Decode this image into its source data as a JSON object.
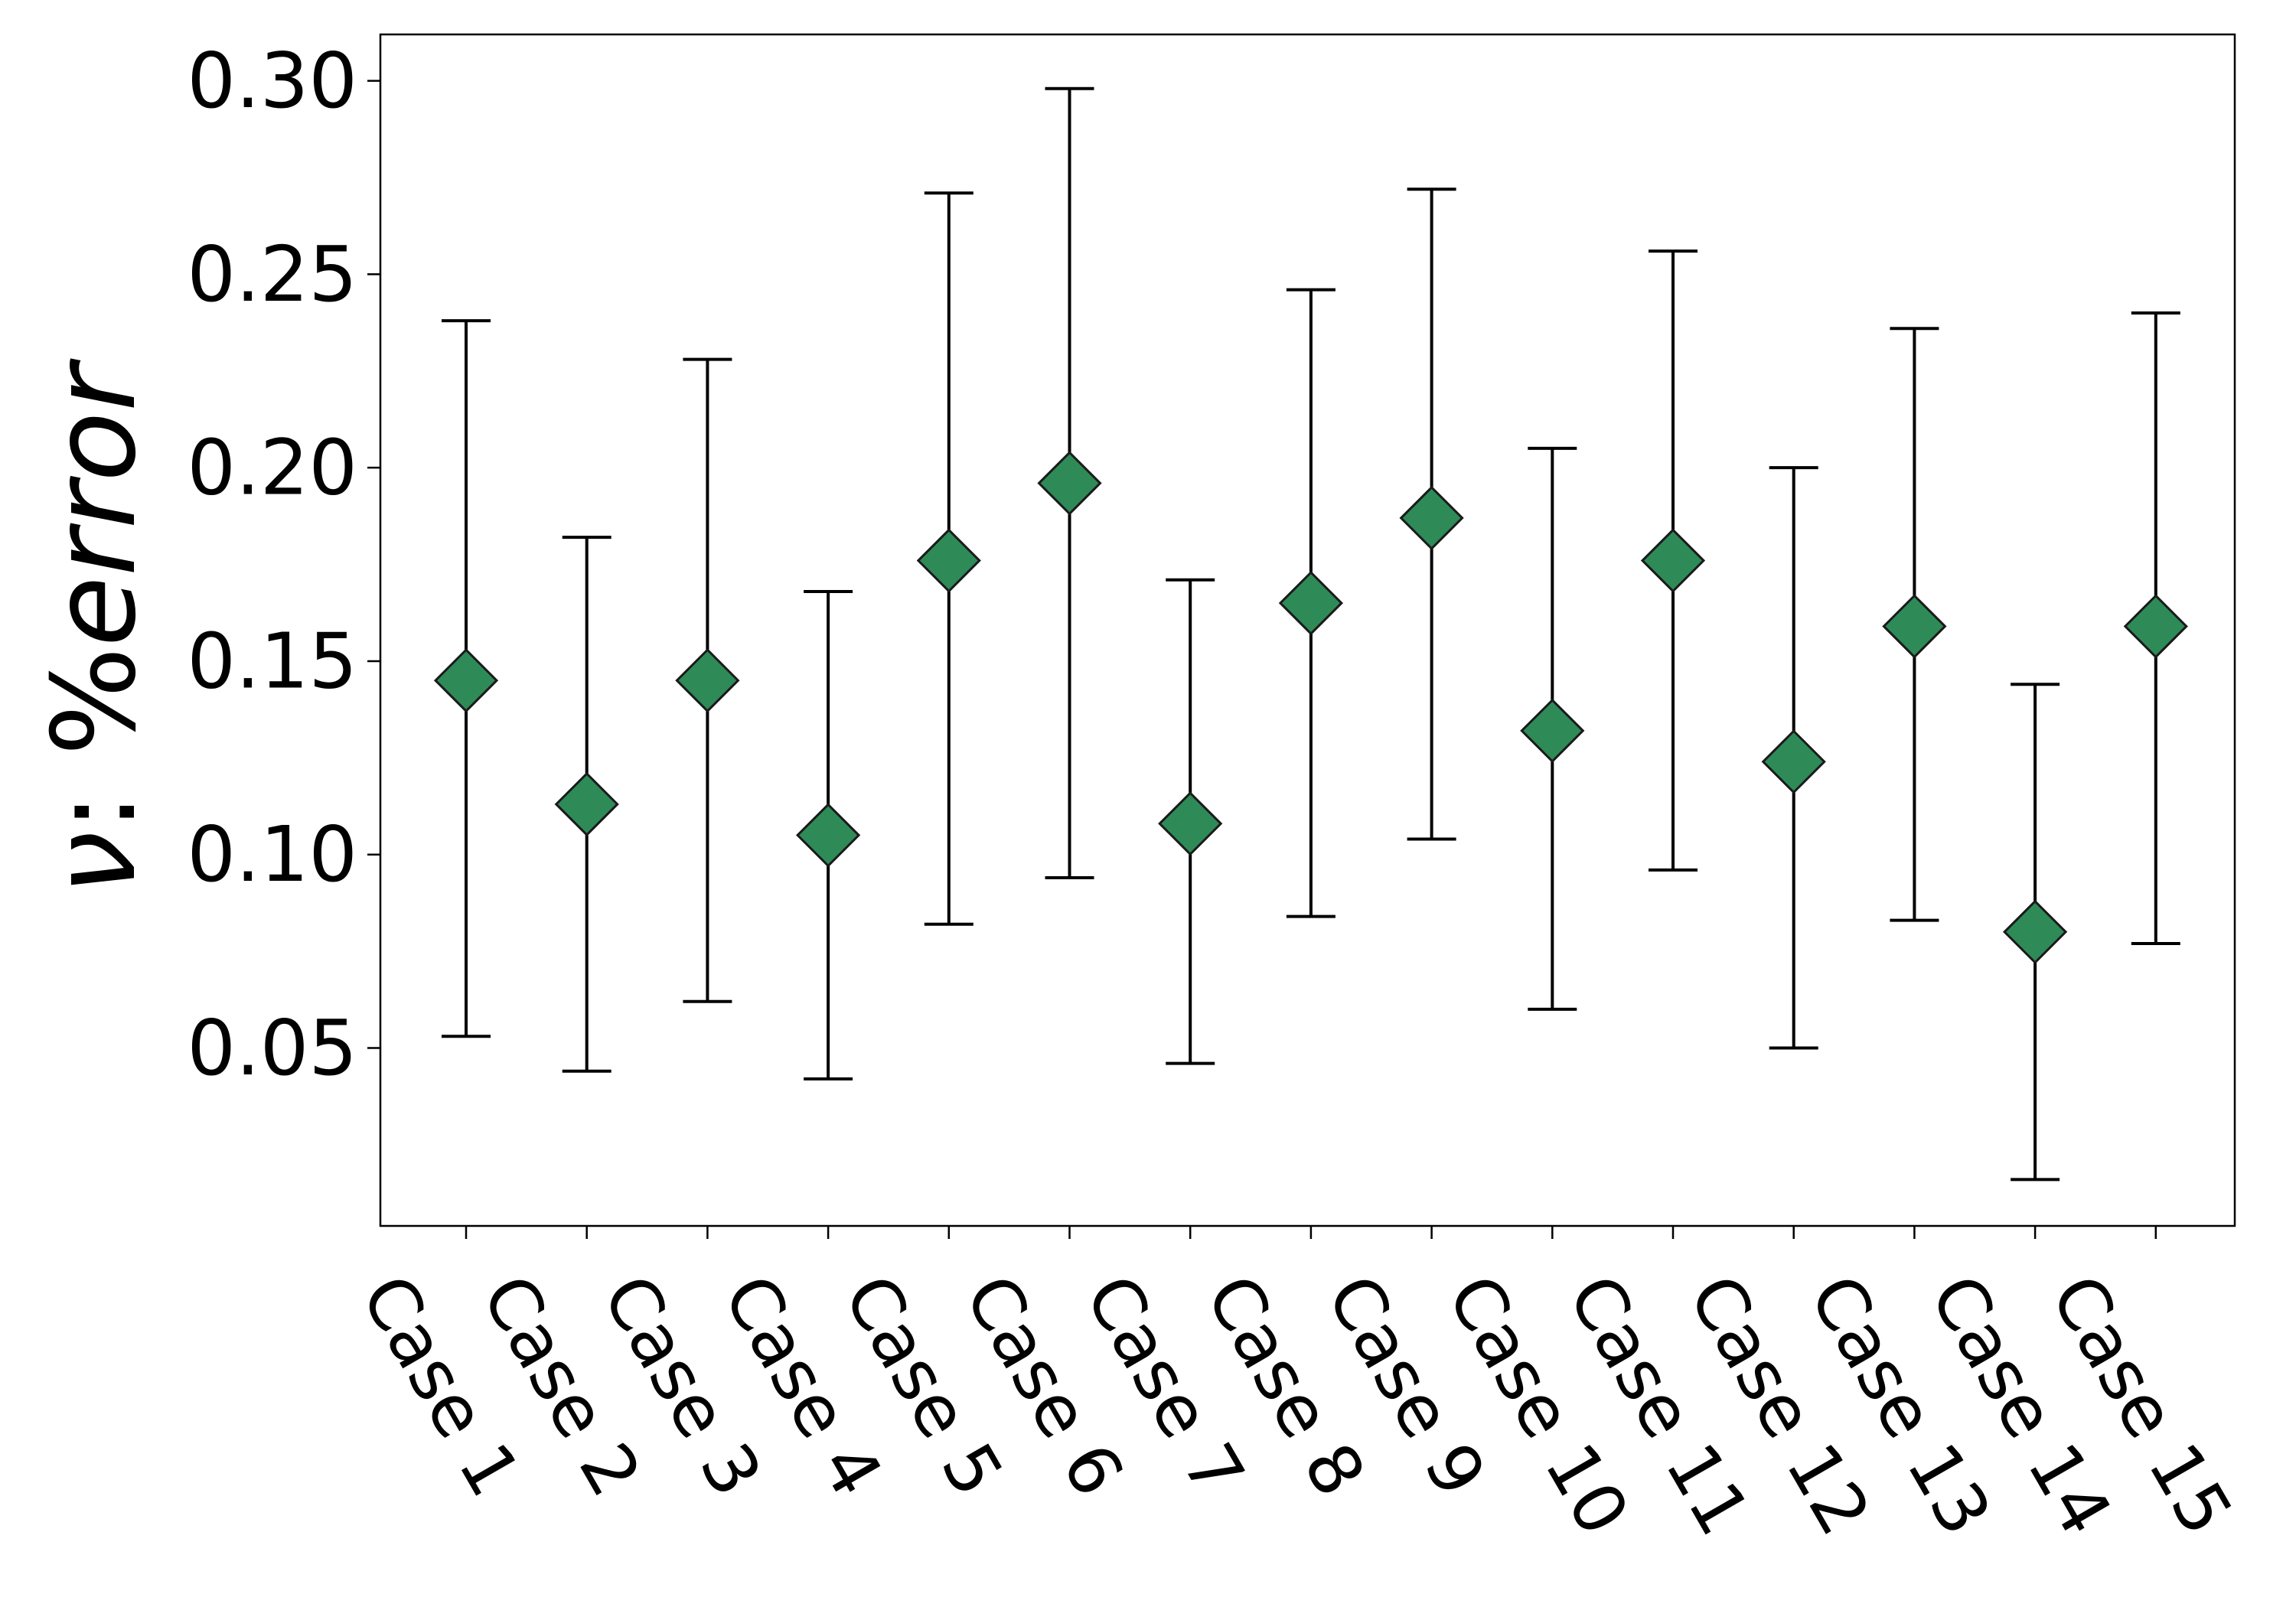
{
  "chart_data": {
    "type": "scatter",
    "title": "",
    "xlabel": "",
    "ylabel": "ν: %error",
    "ylabel_parts": {
      "symbol": "ν",
      "separator": ": ",
      "percent": "%",
      "word": "error"
    },
    "categories": [
      "Case 1",
      "Case 2",
      "Case 3",
      "Case 4",
      "Case 5",
      "Case 6",
      "Case 7",
      "Case 8",
      "Case 9",
      "Case 10",
      "Case 11",
      "Case 12",
      "Case 13",
      "Case 14",
      "Case 15"
    ],
    "values": [
      0.145,
      0.113,
      0.145,
      0.105,
      0.176,
      0.196,
      0.108,
      0.165,
      0.187,
      0.132,
      0.176,
      0.124,
      0.159,
      0.08,
      0.159
    ],
    "error_low": [
      0.053,
      0.044,
      0.062,
      0.042,
      0.082,
      0.094,
      0.046,
      0.084,
      0.104,
      0.06,
      0.096,
      0.05,
      0.083,
      0.016,
      0.077
    ],
    "error_high": [
      0.238,
      0.182,
      0.228,
      0.168,
      0.271,
      0.298,
      0.171,
      0.246,
      0.272,
      0.205,
      0.256,
      0.2,
      0.236,
      0.144,
      0.24
    ],
    "yticks": [
      "0.05",
      "0.10",
      "0.15",
      "0.20",
      "0.25",
      "0.30"
    ],
    "ylim": [
      0.004,
      0.312
    ],
    "grid": false,
    "legend": "none",
    "marker": "diamond",
    "marker_color": "#2e8b57",
    "marker_edge_color": "#1a1a1a",
    "errorbar_color": "#000000"
  }
}
